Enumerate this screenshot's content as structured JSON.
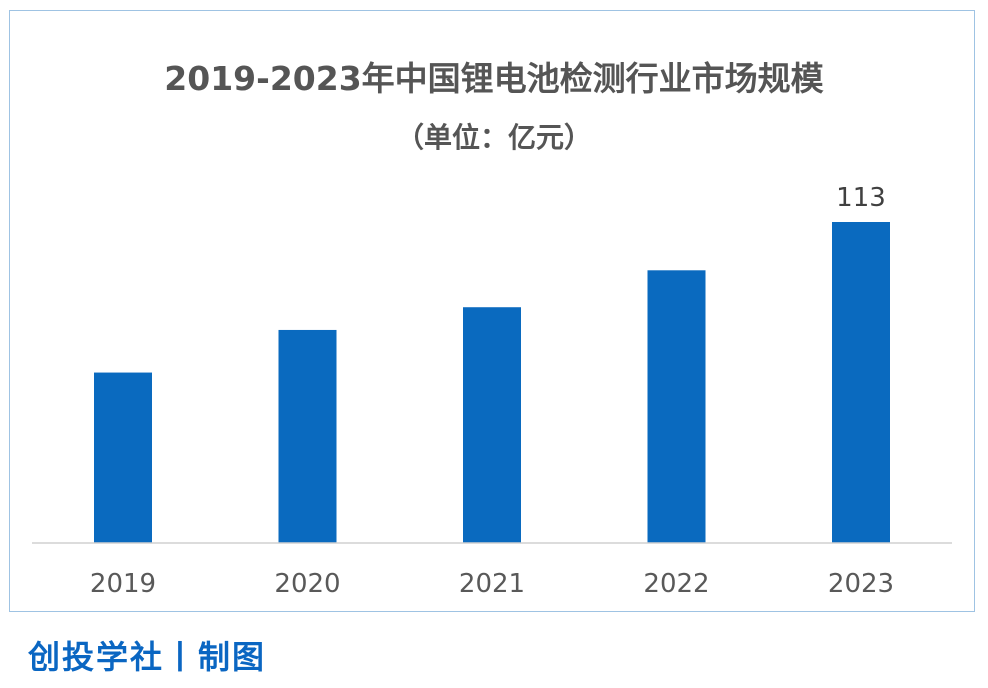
{
  "chart_data": {
    "type": "bar",
    "title": "2019-2023年中国锂电池检测行业市场规模",
    "subtitle": "（单位：亿元）",
    "categories": [
      "2019",
      "2020",
      "2021",
      "2022",
      "2023"
    ],
    "values": [
      60,
      75,
      83,
      96,
      113
    ],
    "data_labels": [
      "",
      "",
      "",
      "",
      "113"
    ],
    "xlabel": "",
    "ylabel": "",
    "ylim": [
      0,
      120
    ],
    "grid": false,
    "bar_color": "#0a6abf",
    "axis_color": "#d0d0d0"
  },
  "footer": {
    "credit": "创投学社丨制图"
  },
  "colors": {
    "frame_border": "#9fc3e3",
    "title_text": "#555555",
    "credit_text": "#0a66c2"
  }
}
